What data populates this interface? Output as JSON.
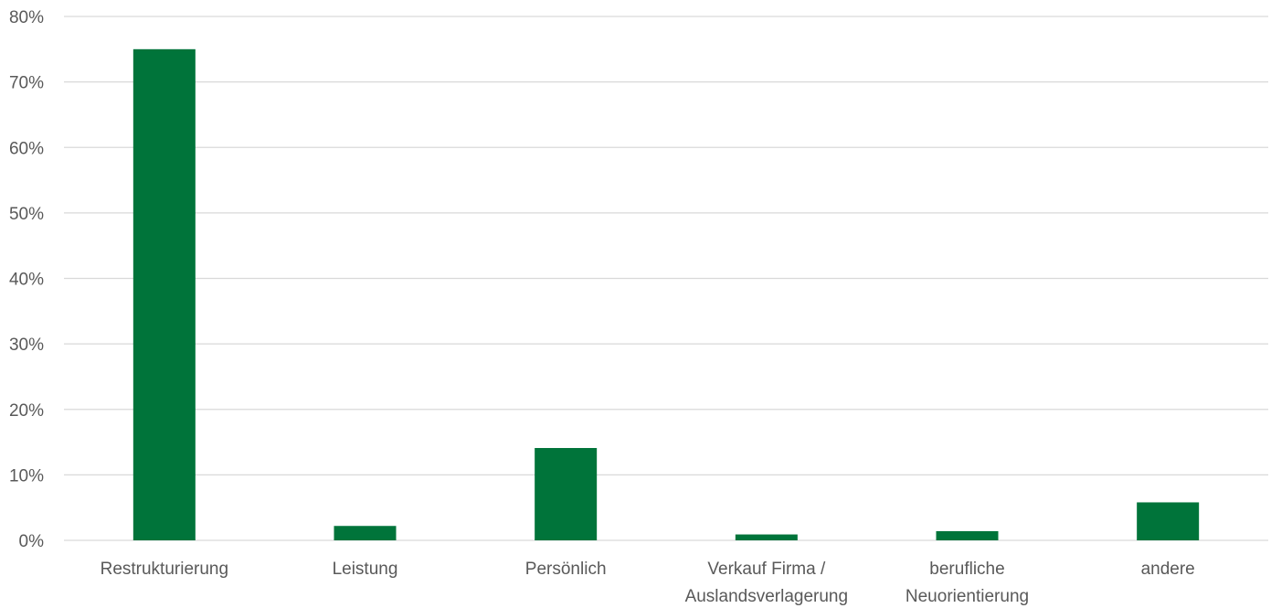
{
  "chart_data": {
    "type": "bar",
    "categories": [
      [
        "Restrukturierung"
      ],
      [
        "Leistung"
      ],
      [
        "Persönlich"
      ],
      [
        "Verkauf Firma /",
        "Auslandsverlagerung"
      ],
      [
        "berufliche",
        "Neuorientierung"
      ],
      [
        "andere"
      ]
    ],
    "values": [
      75,
      2.2,
      14.1,
      0.9,
      1.4,
      5.8
    ],
    "unit": "%",
    "ylim": [
      0,
      80
    ],
    "yticks": [
      "0%",
      "10%",
      "20%",
      "30%",
      "40%",
      "50%",
      "60%",
      "70%",
      "80%"
    ],
    "grid": true,
    "bar_color": "#00743a",
    "gridline_color": "#d9d9d9",
    "text_color": "#595959",
    "title": "",
    "xlabel": "",
    "ylabel": ""
  }
}
